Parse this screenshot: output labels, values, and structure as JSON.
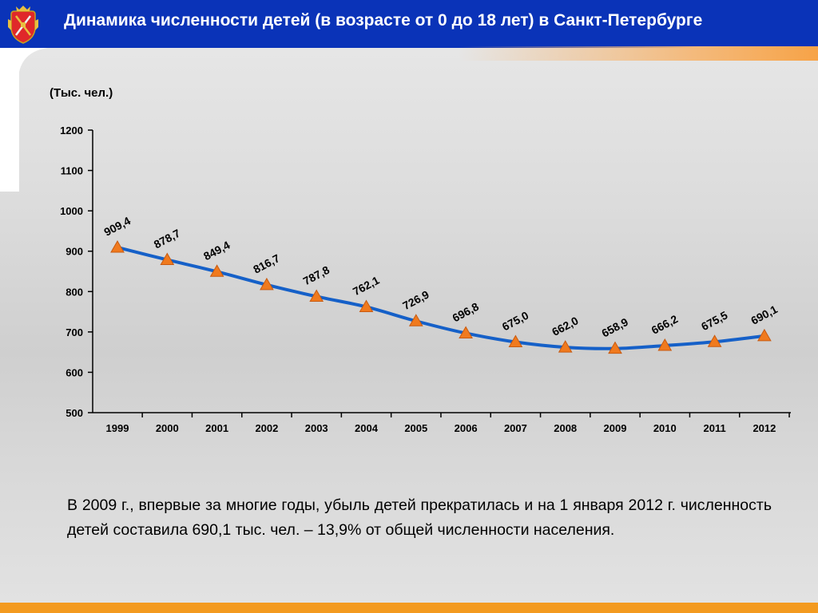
{
  "header": {
    "title": "Динамика численности детей (в возрасте от 0 до 18 лет) в Санкт-Петербурге",
    "emblem": "spb-coat-of-arms"
  },
  "colors": {
    "header_bg": "#0a33b8",
    "accent_orange": "#f39a1f",
    "line": "#1560c8",
    "marker": "#f07a1e"
  },
  "unit_label": "(Тыс. чел.)",
  "chart_data": {
    "type": "line",
    "categories": [
      "1999",
      "2000",
      "2001",
      "2002",
      "2003",
      "2004",
      "2005",
      "2006",
      "2007",
      "2008",
      "2009",
      "2010",
      "2011",
      "2012"
    ],
    "series": [
      {
        "values": [
          909.4,
          878.7,
          849.4,
          816.7,
          787.8,
          762.1,
          726.9,
          696.8,
          675.0,
          662.0,
          658.9,
          666.2,
          675.5,
          690.1
        ],
        "labels": [
          "909,4",
          "878,7",
          "849,4",
          "816,7",
          "787,8",
          "762,1",
          "726,9",
          "696,8",
          "675,0",
          "662,0",
          "658,9",
          "666,2",
          "675,5",
          "690,1"
        ]
      }
    ],
    "ylim": [
      500,
      1200
    ],
    "yticks": [
      "500",
      "600",
      "700",
      "800",
      "900",
      "1000",
      "1100",
      "1200"
    ],
    "ylabel": "(Тыс. чел.)",
    "xlabel": "",
    "grid": false,
    "marker": "triangle",
    "smooth": true
  },
  "note": "В 2009 г., впервые за многие годы, убыль детей прекратилась и на 1 января 2012 г. численность детей составила 690,1 тыс. чел. – 13,9% от общей численности населения."
}
